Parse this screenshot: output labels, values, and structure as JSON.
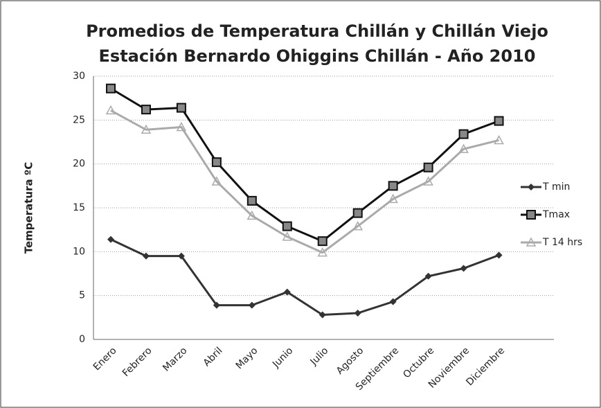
{
  "chart_data": {
    "type": "line",
    "title": "Promedios de  Temperatura Chillán y Chillán Viejo",
    "subtitle": "Estación Bernardo Ohiggins Chillán - Año 2010",
    "y_label": "Temperatura ºC",
    "categories": [
      "Enero",
      "Febrero",
      "Marzo",
      "Abril",
      "Mayo",
      "Junio",
      "Julio",
      "Agosto",
      "Septiembre",
      "Octubre",
      "Noviembre",
      "Diciembre"
    ],
    "series": [
      {
        "name": "T min",
        "color": "#333333",
        "marker": "diamond",
        "values": [
          11.4,
          9.5,
          9.5,
          3.9,
          3.9,
          5.4,
          2.8,
          3.0,
          4.3,
          7.2,
          8.1,
          9.6
        ]
      },
      {
        "name": "Tmax",
        "color": "#111111",
        "marker": "square",
        "values": [
          28.6,
          26.2,
          26.4,
          20.2,
          15.8,
          12.9,
          11.2,
          14.4,
          17.5,
          19.6,
          23.4,
          24.9
        ]
      },
      {
        "name": "T 14 hrs",
        "color": "#aaaaaa",
        "marker": "triangle",
        "values": [
          26.1,
          23.9,
          24.2,
          18.0,
          14.1,
          11.7,
          9.9,
          12.9,
          16.0,
          18.0,
          21.7,
          22.7
        ]
      }
    ],
    "ylim": [
      0,
      30
    ],
    "yticks": [
      0,
      5,
      10,
      15,
      20,
      25,
      30
    ],
    "grid": true
  }
}
